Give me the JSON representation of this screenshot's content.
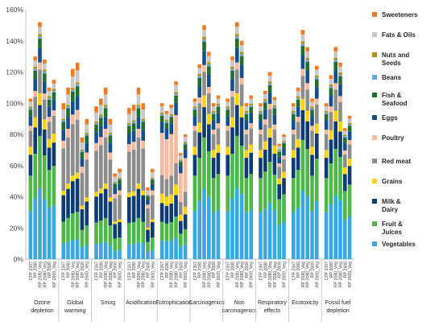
{
  "chart_data": {
    "type": "bar",
    "stacked": true,
    "ylim": [
      0,
      160
    ],
    "yticks": [
      "0%",
      "20%",
      "40%",
      "60%",
      "80%",
      "100%",
      "120%",
      "140%",
      "160%"
    ],
    "scenarios": [
      "CFP 2367",
      "RP 2080",
      "RP 2080_Veg",
      "RP 2080_Veg",
      "RP 2600",
      "RP 2600_Veg"
    ],
    "groups": [
      {
        "label": "Ozone\ndepletion",
        "totals": [
          103,
          130,
          152,
          128,
          110,
          115
        ]
      },
      {
        "label": "Global\nwarming",
        "totals": [
          100,
          110,
          122,
          126,
          78,
          90
        ]
      },
      {
        "label": "Smog",
        "totals": [
          98,
          103,
          110,
          90,
          55,
          58
        ]
      },
      {
        "label": "Acidification",
        "totals": [
          97,
          99,
          110,
          100,
          46,
          58
        ]
      },
      {
        "label": "Eutrophication",
        "totals": [
          100,
          95,
          99,
          114,
          68,
          80
        ]
      },
      {
        "label": "Carcinogenics",
        "totals": [
          103,
          125,
          150,
          133,
          100,
          105
        ]
      },
      {
        "label": "Non\ncarcinogenics",
        "totals": [
          103,
          130,
          152,
          140,
          100,
          105
        ]
      },
      {
        "label": "Respiratory\neffects",
        "totals": [
          100,
          108,
          120,
          104,
          74,
          80
        ]
      },
      {
        "label": "Ecotoxicity",
        "totals": [
          100,
          110,
          147,
          136,
          103,
          124
        ]
      },
      {
        "label": "Fossil fuel\ndepletion",
        "totals": [
          100,
          118,
          136,
          126,
          84,
          92
        ]
      }
    ],
    "series": [
      {
        "name": "Vegetables",
        "color": "#38a8e0"
      },
      {
        "name": "Fruit &\nJuices",
        "color": "#4db848"
      },
      {
        "name": "Milk &\nDairy",
        "color": "#0d3b74"
      },
      {
        "name": "Grains",
        "color": "#ffd200"
      },
      {
        "name": "Red meat",
        "color": "#8c8c8c"
      },
      {
        "name": "Poultry",
        "color": "#f9b99a"
      },
      {
        "name": "Eggs",
        "color": "#134f8e"
      },
      {
        "name": "Fish &\nSeafood",
        "color": "#1f6e2b"
      },
      {
        "name": "Beans",
        "color": "#6aa3d5"
      },
      {
        "name": "Nuts and\nSeeds",
        "color": "#b58f00"
      },
      {
        "name": "Fats & Oils",
        "color": "#c8c8c8"
      },
      {
        "name": "Sweeteners",
        "color": "#f47a20"
      }
    ],
    "share_profiles": {
      "default": [
        0.3,
        0.22,
        0.13,
        0.05,
        0.1,
        0.03,
        0.06,
        0.04,
        0.01,
        0.01,
        0.03,
        0.02
      ],
      "meat_heavy": [
        0.1,
        0.14,
        0.17,
        0.03,
        0.27,
        0.05,
        0.07,
        0.05,
        0.01,
        0.01,
        0.06,
        0.04
      ],
      "eutro": [
        0.12,
        0.12,
        0.12,
        0.06,
        0.12,
        0.27,
        0.07,
        0.04,
        0.01,
        0.01,
        0.04,
        0.02
      ]
    },
    "group_profiles": [
      "default",
      "meat_heavy",
      "meat_heavy",
      "meat_heavy",
      "eutro",
      "default",
      "default",
      "default",
      "default",
      "default"
    ],
    "grid": false,
    "legend_position": "right"
  }
}
